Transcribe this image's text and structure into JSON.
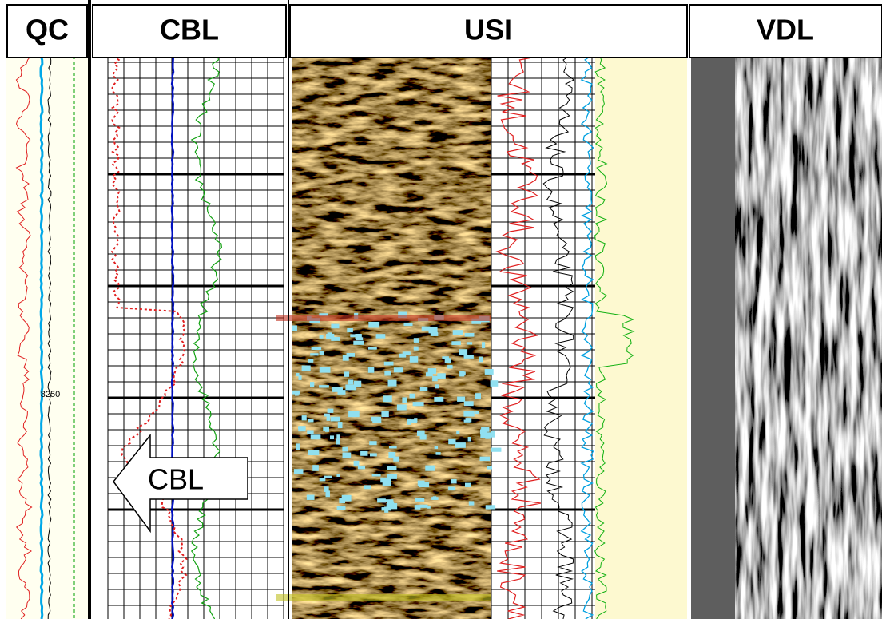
{
  "headers": [
    "QC",
    "CBL",
    "USI",
    "VDL"
  ],
  "depth_label": "8250",
  "annotation": "CBL"
}
